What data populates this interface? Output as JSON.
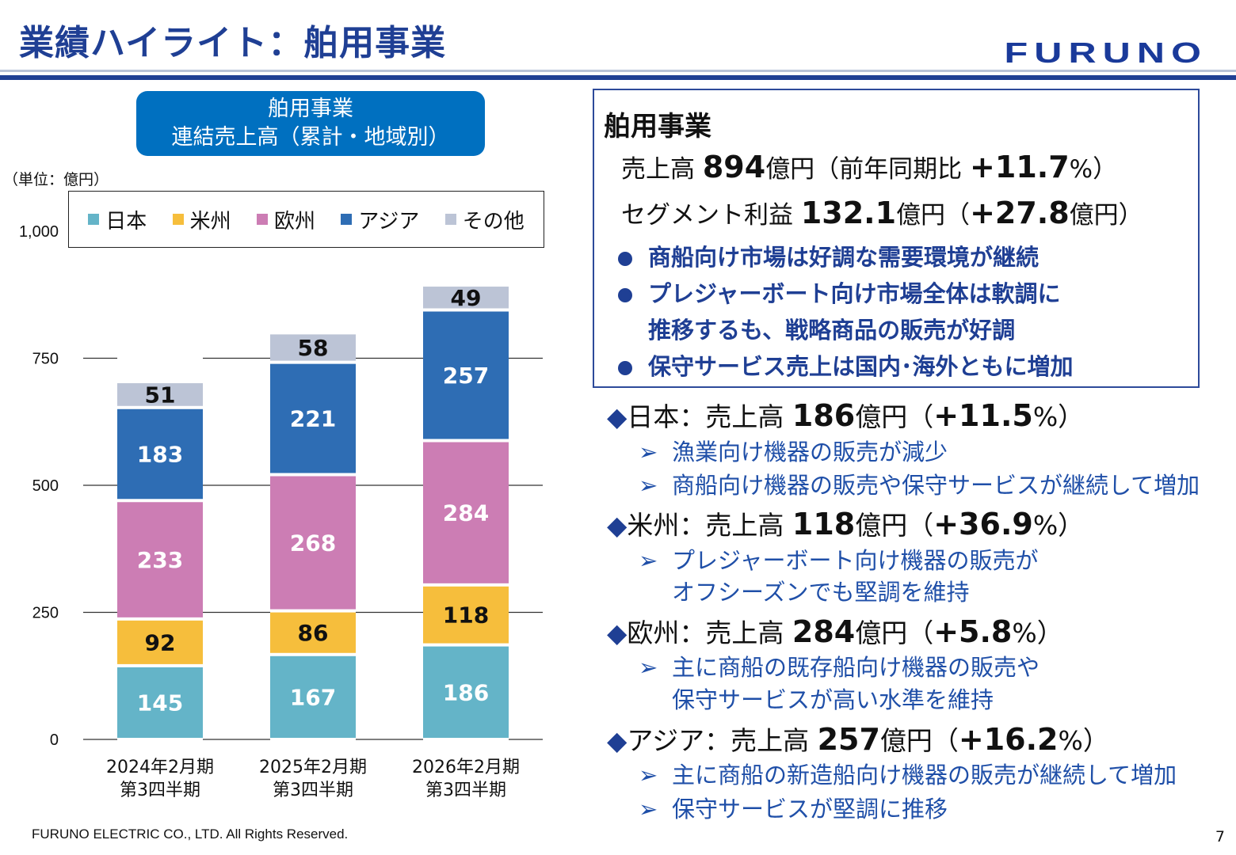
{
  "header": {
    "title": "業績ハイライト：舶用事業",
    "logo": "FURUNO"
  },
  "chart_box": {
    "line1": "舶用事業",
    "line2": "連結売上高（累計・地域別）"
  },
  "unit_label": "（単位：億円）",
  "chart_data": {
    "type": "bar",
    "stacked": true,
    "categories": [
      [
        "2024年2月期",
        "第3四半期"
      ],
      [
        "2025年2月期",
        "第3四半期"
      ],
      [
        "2026年2月期",
        "第3四半期"
      ]
    ],
    "series": [
      {
        "name": "日本",
        "color": "#64b4c8",
        "values": [
          145,
          167,
          186
        ]
      },
      {
        "name": "米州",
        "color": "#f6be3c",
        "values": [
          92,
          86,
          118
        ]
      },
      {
        "name": "欧州",
        "color": "#cc7db4",
        "values": [
          233,
          268,
          284
        ]
      },
      {
        "name": "アジア",
        "color": "#2e6db4",
        "values": [
          183,
          221,
          257
        ]
      },
      {
        "name": "その他",
        "color": "#bcc4d6",
        "values": [
          51,
          58,
          49
        ]
      }
    ],
    "ylim": [
      0,
      1000
    ],
    "yticks": [
      "0",
      "250",
      "500",
      "750",
      "1,000"
    ],
    "ytick_values": [
      0,
      250,
      500,
      750,
      1000
    ],
    "legend": "top"
  },
  "summary": {
    "heading": "舶用事業",
    "sales_label": "売上高 ",
    "sales_value": "894",
    "sales_unit": "億円（前年同期比 ",
    "sales_change": "+11.7",
    "sales_tail": "%）",
    "profit_label": "セグメント利益 ",
    "profit_value": "132.1",
    "profit_unit": "億円（",
    "profit_change": "+27.8",
    "profit_tail": "億円）",
    "bullets": [
      "商船向け市場は好調な需要環境が継続",
      "プレジャーボート向け市場全体は軟調に",
      "推移するも、戦略商品の販売が好調",
      "保守サービス売上は国内･海外ともに増加"
    ]
  },
  "regions": [
    {
      "name": "日本：売上高 ",
      "value": "186",
      "unit": "億円（",
      "change": "+11.5",
      "tail": "%）",
      "notes": [
        "漁業向け機器の販売が減少",
        "商船向け機器の販売や保守サービスが継続して増加"
      ]
    },
    {
      "name": "米州：売上高 ",
      "value": "118",
      "unit": "億円（",
      "change": "+36.9",
      "tail": "%）",
      "notes": [
        "プレジャーボート向け機器の販売が",
        "オフシーズンでも堅調を維持"
      ]
    },
    {
      "name": "欧州：売上高 ",
      "value": "284",
      "unit": "億円（",
      "change": "+5.8",
      "tail": "%）",
      "notes": [
        "主に商船の既存船向け機器の販売や",
        "保守サービスが高い水準を維持"
      ]
    },
    {
      "name": "アジア：売上高 ",
      "value": "257",
      "unit": "億円（",
      "change": "+16.2",
      "tail": "%）",
      "notes": [
        "主に商船の新造船向け機器の販売が継続して増加",
        "保守サービスが堅調に推移"
      ]
    }
  ],
  "footer": {
    "copyright": "FURUNO ELECTRIC CO., LTD. All Rights Reserved.",
    "page": "7"
  }
}
